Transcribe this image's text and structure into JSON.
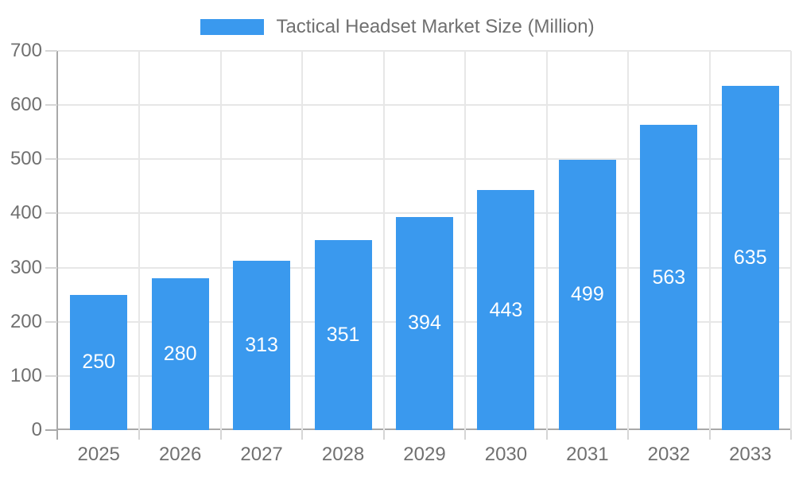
{
  "chart_data": {
    "type": "bar",
    "title": "Tactical Headset Market Size (Million)",
    "legend_position": "top",
    "categories": [
      "2025",
      "2026",
      "2027",
      "2028",
      "2029",
      "2030",
      "2031",
      "2032",
      "2033"
    ],
    "series": [
      {
        "name": "Tactical Headset Market Size (Million)",
        "values": [
          250,
          280,
          313,
          351,
          394,
          443,
          499,
          563,
          635
        ]
      }
    ],
    "value_labels_shown": true,
    "xlabel": "",
    "ylabel": "",
    "ylim": [
      0,
      700
    ],
    "y_ticks": [
      0,
      100,
      200,
      300,
      400,
      500,
      600,
      700
    ],
    "grid": true,
    "colors": {
      "bar_fill": "#3A99EE",
      "value_label": "#FFFFFF",
      "axis_text": "#707070",
      "legend_text": "#707070",
      "gridline": "#E7E7E7",
      "tick": "#D6D6D6",
      "axis_line": "#A9A9A9",
      "background": "#FFFFFF"
    }
  }
}
